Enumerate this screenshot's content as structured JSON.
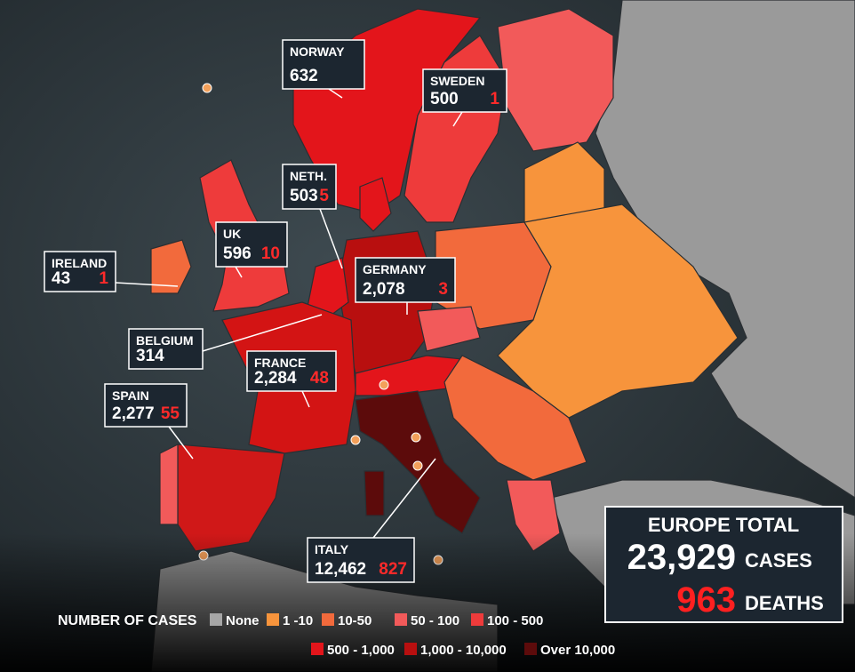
{
  "callouts": [
    {
      "name": "NORWAY",
      "cases": "632"
    },
    {
      "name": "SWEDEN",
      "cases": "500",
      "deaths": "1"
    },
    {
      "name": "NETH.",
      "cases": "503",
      "deaths": "5"
    },
    {
      "name": "UK",
      "cases": "596",
      "deaths": "10"
    },
    {
      "name": "IRELAND",
      "cases": "43",
      "deaths": "1"
    },
    {
      "name": "GERMANY",
      "cases": "2,078",
      "deaths": "3"
    },
    {
      "name": "BELGIUM",
      "cases": "314"
    },
    {
      "name": "FRANCE",
      "cases": "2,284",
      "deaths": "48"
    },
    {
      "name": "SPAIN",
      "cases": "2,277",
      "deaths": "55"
    },
    {
      "name": "ITALY",
      "cases": "12,462",
      "deaths": "827"
    }
  ],
  "total": {
    "title": "EUROPE TOTAL",
    "cases": "23,929",
    "cases_label": "CASES",
    "deaths": "963",
    "deaths_label": "DEATHS"
  },
  "legend": {
    "title": "NUMBER OF CASES",
    "items": [
      {
        "label": "None",
        "color": "#a6a6a6"
      },
      {
        "label": "1 -10",
        "color": "#f7943c"
      },
      {
        "label": "10-50",
        "color": "#f26a3c"
      },
      {
        "label": "50 - 100",
        "color": "#f25a5a"
      },
      {
        "label": "100 - 500",
        "color": "#ee3b3b"
      },
      {
        "label": "500 - 1,000",
        "color": "#e3151b"
      },
      {
        "label": "1,000 - 10,000",
        "color": "#b80f0f"
      },
      {
        "label": "Over 10,000",
        "color": "#5c0b0b"
      }
    ]
  }
}
